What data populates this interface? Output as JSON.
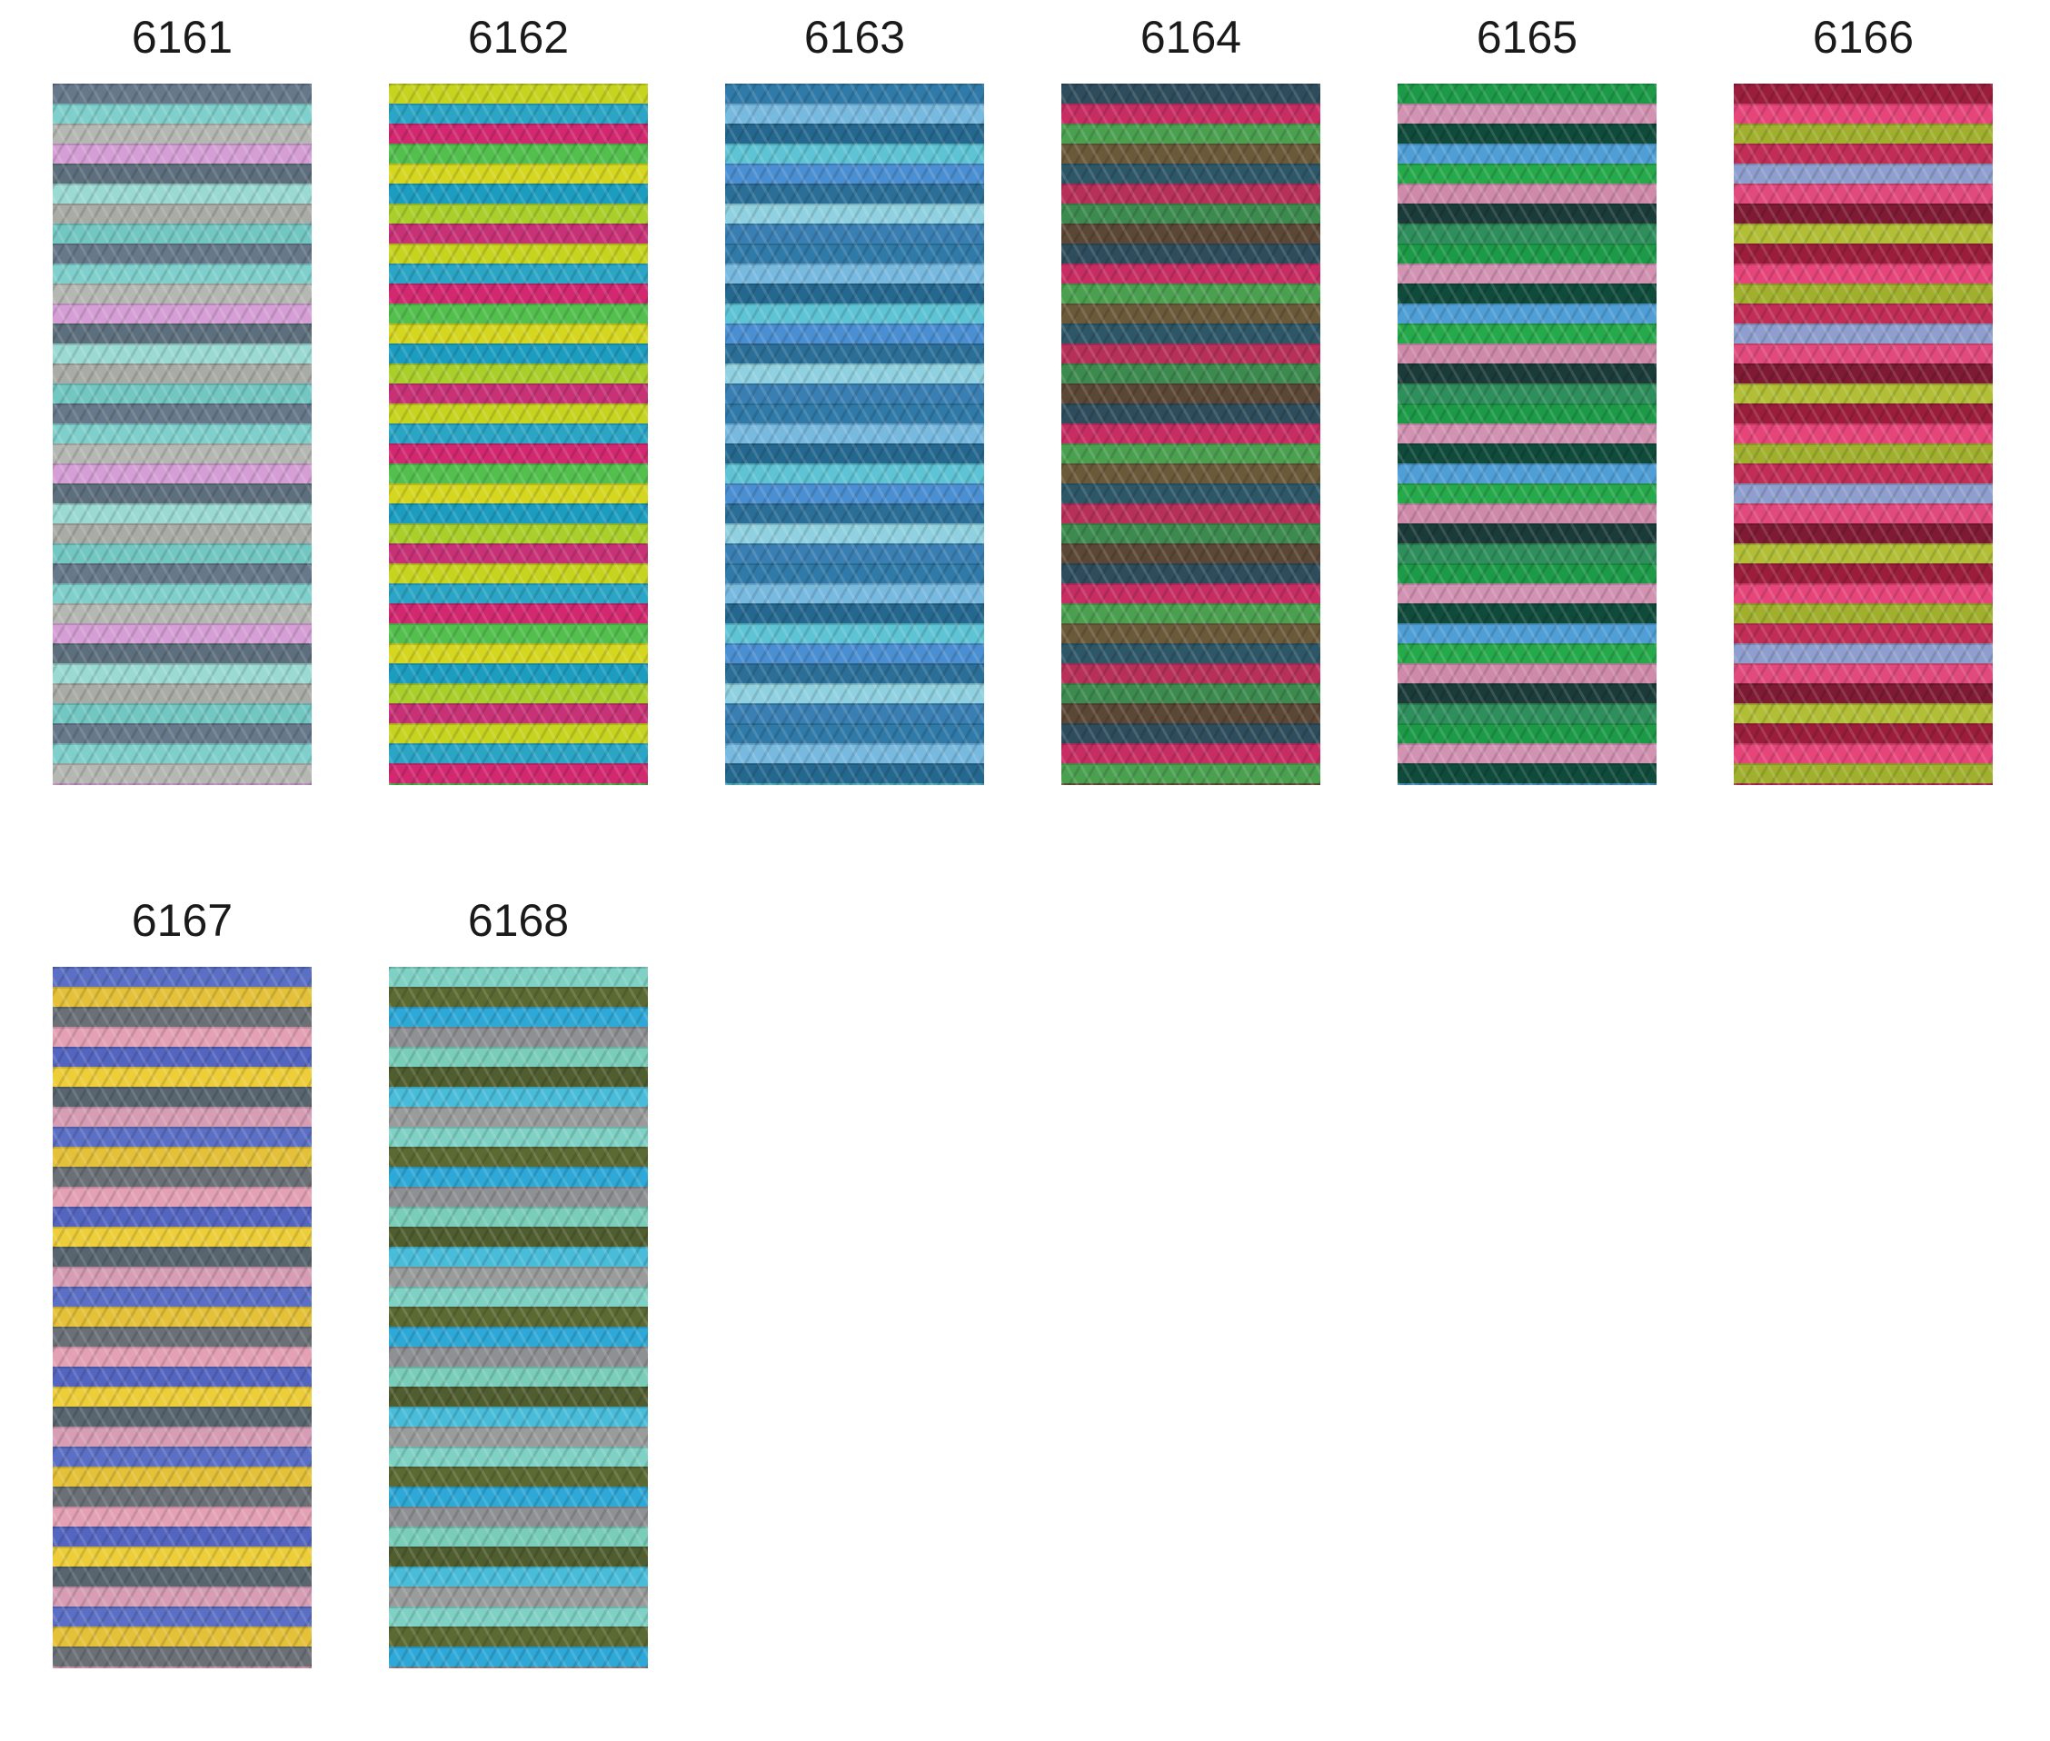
{
  "swatches": [
    "6161",
    "6162",
    "6163",
    "6164",
    "6165",
    "6166",
    "6167",
    "6168"
  ]
}
